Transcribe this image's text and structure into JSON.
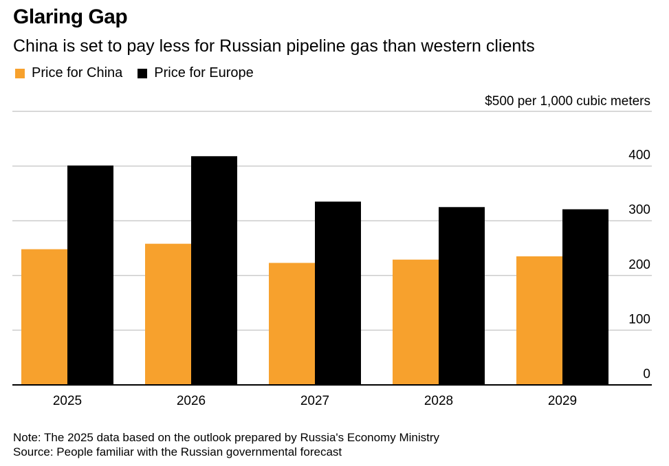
{
  "title": "Glaring Gap",
  "subtitle": "China is set to pay less for Russian pipeline gas than western clients",
  "notes": {
    "note": "Note: The 2025 data based on the outlook prepared by Russia's Economy Ministry",
    "source": "Source: People familiar with the Russian governmental forecast"
  },
  "chart_data": {
    "type": "bar",
    "categories": [
      "2025",
      "2026",
      "2027",
      "2028",
      "2029"
    ],
    "series": [
      {
        "name": "Price for China",
        "color": "#F7A12D",
        "values": [
          248,
          258,
          223,
          229,
          235
        ]
      },
      {
        "name": "Price for Europe",
        "color": "#000000",
        "values": [
          401,
          418,
          335,
          325,
          321
        ]
      }
    ],
    "ylabel": "$500 per 1,000 cubic meters",
    "yticks": [
      "0",
      "100",
      "200",
      "300",
      "400"
    ],
    "ylim": [
      0,
      500
    ],
    "grid": true,
    "legend": "top-left",
    "yaxis_side": "right"
  }
}
